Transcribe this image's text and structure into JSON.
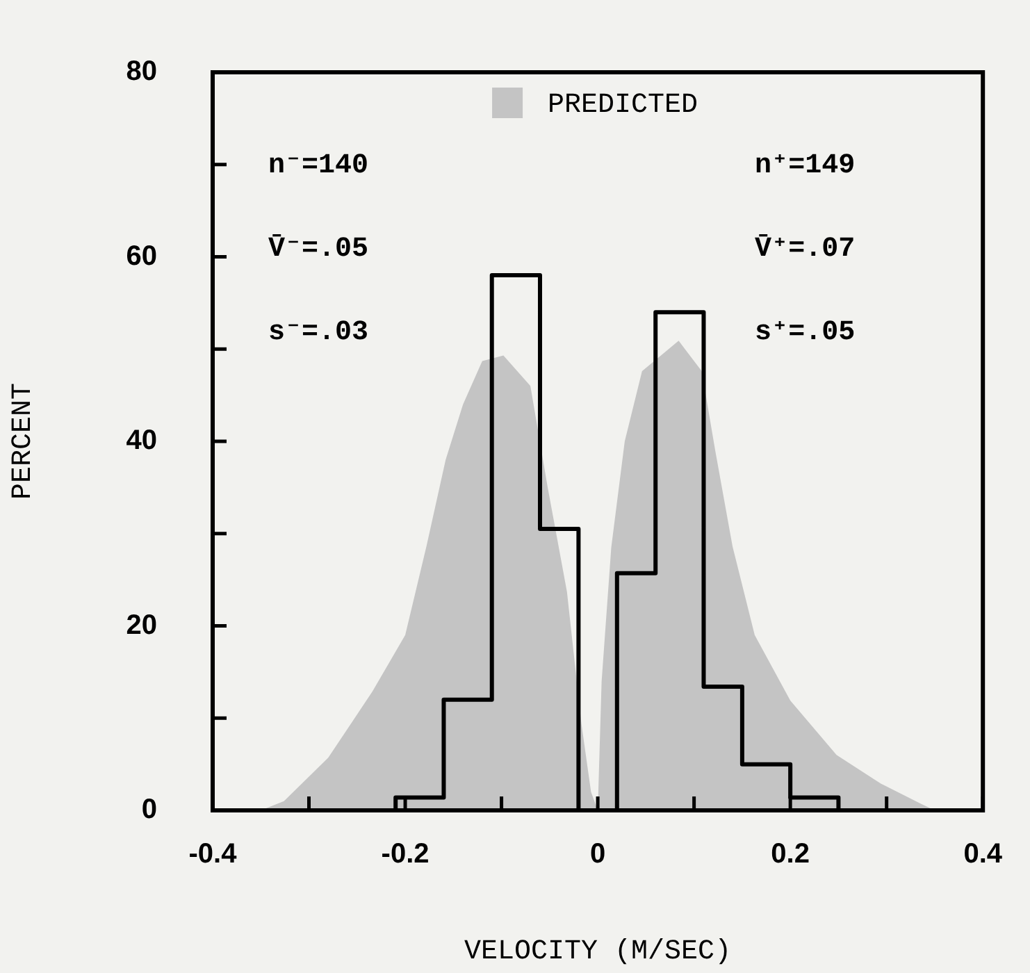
{
  "chart_data": {
    "type": "histogram",
    "xlabel": "VELOCITY (M/SEC)",
    "ylabel": "PERCENT",
    "xlim": [
      -0.4,
      0.4
    ],
    "ylim": [
      0,
      80
    ],
    "xticks": [
      -0.4,
      {
        "value": -0.3,
        "label": null
      },
      -0.2,
      {
        "value": -0.1,
        "label": null
      },
      0,
      {
        "value": 0.1,
        "label": null
      },
      0.2,
      {
        "value": 0.3,
        "label": null
      },
      0.4
    ],
    "yticks": [
      0,
      {
        "value": 10,
        "label": null
      },
      20,
      {
        "value": 30,
        "label": null
      },
      40,
      {
        "value": 50,
        "label": null
      },
      60,
      {
        "value": 70,
        "label": null
      },
      80
    ],
    "legend": "top",
    "series": [
      {
        "type": "area",
        "name": "PREDICTED",
        "color": "#c4c4c4",
        "x": [
          -0.35,
          -0.326,
          -0.28,
          -0.234,
          -0.2,
          -0.178,
          -0.158,
          -0.14,
          -0.12,
          -0.098,
          -0.07,
          -0.052,
          -0.032,
          -0.017,
          -0.007,
          0,
          0.004,
          0.014,
          0.028,
          0.046,
          0.084,
          0.108,
          0.122,
          0.14,
          0.163,
          0.2,
          0.248,
          0.294,
          0.336,
          0.35
        ],
        "values": [
          0,
          1,
          5.7,
          12.9,
          19,
          28.6,
          38,
          44,
          48.7,
          49.3,
          46,
          35,
          23.7,
          9.4,
          2,
          0,
          14,
          28.5,
          40,
          47.6,
          50.9,
          47.6,
          39,
          28.6,
          19,
          11.9,
          6,
          2.9,
          0.7,
          0
        ]
      },
      {
        "type": "histogram",
        "color": "#000000",
        "bins": [
          -0.21,
          -0.16,
          -0.11,
          -0.06,
          -0.02,
          0.02,
          0.06,
          0.11,
          0.15,
          0.2,
          0.25
        ],
        "values": [
          1.4,
          12,
          58,
          30.5,
          0,
          25.7,
          54,
          13.4,
          5,
          1.4
        ]
      }
    ],
    "annotations": [
      "n⁻=140",
      "V̄⁻=.05",
      "s⁻=.03",
      "n⁺=149",
      "V̄⁺=.07",
      "s⁺=.05"
    ]
  }
}
